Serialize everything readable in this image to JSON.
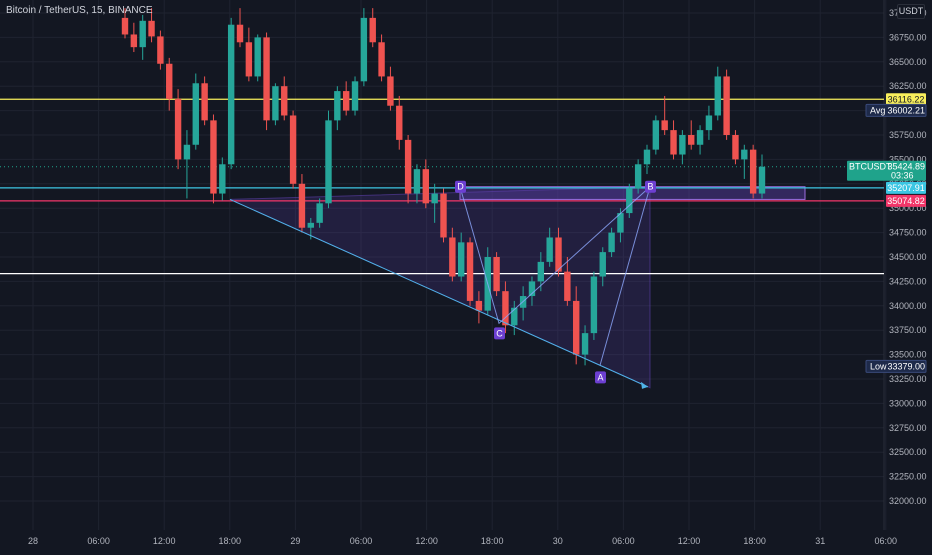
{
  "header": {
    "symbol_title": "Bitcoin / TetherUS, 15, BINANCE",
    "currency": "USDT"
  },
  "colors": {
    "background": "#131722",
    "up": "#26a69a",
    "down": "#ef5350",
    "yellow_line": "#f9ef5c",
    "cyan_line": "#3cc6e3",
    "pink_line": "#f23669",
    "white_line": "#ffffff",
    "pattern_fill": "#5b3fa8",
    "pattern_label": "#6c3fd1",
    "trendline": "#4fb3e8"
  },
  "chart_data": {
    "type": "candlestick",
    "price_axis": {
      "ticks": [
        "37000.00",
        "36750.00",
        "36500.00",
        "36250.00",
        "36000.00",
        "35750.00",
        "35500.00",
        "35250.00",
        "35000.00",
        "34750.00",
        "34500.00",
        "34250.00",
        "34000.00",
        "33750.00",
        "33500.00",
        "33250.00",
        "33000.00",
        "32750.00",
        "32500.00",
        "32250.00",
        "32000.00"
      ],
      "range": [
        31900,
        37100
      ]
    },
    "time_axis": {
      "ticks": [
        "28",
        "06:00",
        "12:00",
        "18:00",
        "29",
        "06:00",
        "12:00",
        "18:00",
        "30",
        "06:00",
        "12:00",
        "18:00",
        "31",
        "06:00"
      ]
    },
    "horizontal_levels": [
      {
        "name": "yellow-level",
        "price": 36116.22,
        "label": "36116.22",
        "color": "#f9ef5c"
      },
      {
        "name": "cyan-level",
        "price": 35207.91,
        "label": "35207.91",
        "color": "#3cc6e3"
      },
      {
        "name": "pink-level",
        "price": 35074.82,
        "label": "35074.82",
        "color": "#f23669"
      },
      {
        "name": "white-level",
        "price": 34330,
        "label": "",
        "color": "#ffffff"
      }
    ],
    "price_tags": [
      {
        "name": "avg-tag",
        "prefix": "Avg",
        "value": "36002.21",
        "price": 36002.21,
        "color": "#1e2a4a"
      },
      {
        "name": "current-price-tag",
        "prefix": "BTCUSDT",
        "value": "35424.89",
        "countdown": "03:36",
        "price": 35424.89,
        "color": "#1fa38b"
      },
      {
        "name": "low-tag",
        "prefix": "Low",
        "value": "33379.00",
        "price": 33379,
        "color": "#1e2a4a"
      }
    ],
    "pattern_points": [
      {
        "label": "D",
        "price": 35220
      },
      {
        "label": "C",
        "price": 33820
      },
      {
        "label": "B",
        "price": 35220
      },
      {
        "label": "A",
        "price": 33390
      }
    ],
    "candles": [
      [
        36950,
        37050,
        36740,
        36780
      ],
      [
        36780,
        36900,
        36600,
        36650
      ],
      [
        36650,
        36980,
        36520,
        36920
      ],
      [
        36920,
        37050,
        36700,
        36760
      ],
      [
        36760,
        36820,
        36420,
        36480
      ],
      [
        36480,
        36540,
        36000,
        36120
      ],
      [
        36120,
        36220,
        35400,
        35500
      ],
      [
        35500,
        35800,
        35100,
        35650
      ],
      [
        35650,
        36380,
        35600,
        36280
      ],
      [
        36280,
        36350,
        35850,
        35900
      ],
      [
        35900,
        35960,
        35050,
        35150
      ],
      [
        35150,
        35520,
        35080,
        35450
      ],
      [
        35450,
        36950,
        35400,
        36880
      ],
      [
        36880,
        37050,
        36650,
        36700
      ],
      [
        36700,
        36850,
        36300,
        36350
      ],
      [
        36350,
        36780,
        36300,
        36750
      ],
      [
        36750,
        36800,
        35800,
        35900
      ],
      [
        35900,
        36280,
        35850,
        36250
      ],
      [
        36250,
        36350,
        35900,
        35950
      ],
      [
        35950,
        36000,
        35200,
        35250
      ],
      [
        35250,
        35350,
        34750,
        34800
      ],
      [
        34800,
        34900,
        34680,
        34850
      ],
      [
        34850,
        35100,
        34800,
        35050
      ],
      [
        35050,
        36000,
        35000,
        35900
      ],
      [
        35900,
        36250,
        35800,
        36200
      ],
      [
        36200,
        36300,
        35950,
        36000
      ],
      [
        36000,
        36350,
        35950,
        36300
      ],
      [
        36300,
        37050,
        36250,
        36950
      ],
      [
        36950,
        37050,
        36650,
        36700
      ],
      [
        36700,
        36780,
        36300,
        36350
      ],
      [
        36350,
        36450,
        36000,
        36050
      ],
      [
        36050,
        36150,
        35600,
        35700
      ],
      [
        35700,
        35750,
        35050,
        35150
      ],
      [
        35150,
        35450,
        35050,
        35400
      ],
      [
        35400,
        35500,
        35000,
        35050
      ],
      [
        35050,
        35250,
        34850,
        35150
      ],
      [
        35150,
        35200,
        34650,
        34700
      ],
      [
        34700,
        34800,
        34250,
        34300
      ],
      [
        34300,
        34750,
        34250,
        34650
      ],
      [
        34650,
        34700,
        34000,
        34050
      ],
      [
        34050,
        34150,
        33820,
        33950
      ],
      [
        33950,
        34600,
        33900,
        34500
      ],
      [
        34500,
        34550,
        34100,
        34150
      ],
      [
        34150,
        34250,
        33720,
        33800
      ],
      [
        33800,
        34050,
        33700,
        33980
      ],
      [
        33980,
        34200,
        33850,
        34100
      ],
      [
        34100,
        34300,
        34000,
        34250
      ],
      [
        34250,
        34550,
        34150,
        34450
      ],
      [
        34450,
        34800,
        34400,
        34700
      ],
      [
        34700,
        34800,
        34300,
        34350
      ],
      [
        34350,
        34500,
        34000,
        34050
      ],
      [
        34050,
        34200,
        33400,
        33500
      ],
      [
        33500,
        33800,
        33390,
        33720
      ],
      [
        33720,
        34350,
        33650,
        34300
      ],
      [
        34300,
        34600,
        34200,
        34550
      ],
      [
        34550,
        34800,
        34500,
        34750
      ],
      [
        34750,
        35000,
        34650,
        34950
      ],
      [
        34950,
        35250,
        34900,
        35200
      ],
      [
        35200,
        35500,
        35150,
        35450
      ],
      [
        35450,
        35650,
        35350,
        35600
      ],
      [
        35600,
        35950,
        35550,
        35900
      ],
      [
        35900,
        36150,
        35750,
        35800
      ],
      [
        35800,
        35900,
        35500,
        35550
      ],
      [
        35550,
        35800,
        35450,
        35750
      ],
      [
        35750,
        35900,
        35600,
        35650
      ],
      [
        35650,
        35850,
        35550,
        35800
      ],
      [
        35800,
        36050,
        35700,
        35950
      ],
      [
        35950,
        36450,
        35900,
        36350
      ],
      [
        36350,
        36420,
        35700,
        35750
      ],
      [
        35750,
        35800,
        35450,
        35500
      ],
      [
        35500,
        35650,
        35300,
        35600
      ],
      [
        35600,
        35650,
        35100,
        35150
      ],
      [
        35150,
        35550,
        35100,
        35424.89
      ]
    ]
  }
}
